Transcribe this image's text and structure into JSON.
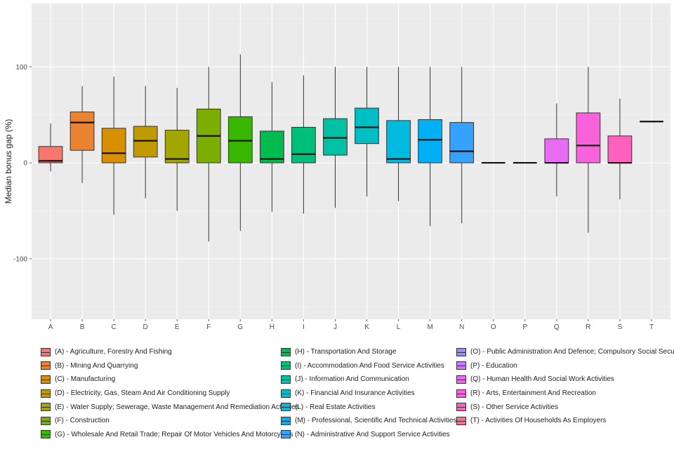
{
  "chart_data": {
    "type": "boxplot",
    "ylabel": "Median bonus gap (%)",
    "xlabel": "",
    "ylim": [
      -163,
      166
    ],
    "yticks": [
      -100,
      0,
      100
    ],
    "grid": true,
    "legend_position": "bottom",
    "categories": [
      "A",
      "B",
      "C",
      "D",
      "E",
      "F",
      "G",
      "H",
      "I",
      "J",
      "K",
      "L",
      "M",
      "N",
      "O",
      "P",
      "Q",
      "R",
      "S",
      "T"
    ],
    "boxes": [
      {
        "min": -9,
        "q1": 0,
        "median": 2,
        "q3": 17,
        "max": 41
      },
      {
        "min": -21,
        "q1": 13,
        "median": 42,
        "q3": 53,
        "max": 80
      },
      {
        "min": -54,
        "q1": 0,
        "median": 10,
        "q3": 36,
        "max": 90
      },
      {
        "min": -37,
        "q1": 6,
        "median": 23,
        "q3": 38,
        "max": 80
      },
      {
        "min": -50,
        "q1": 0,
        "median": 4,
        "q3": 34,
        "max": 78
      },
      {
        "min": -82,
        "q1": 0,
        "median": 28,
        "q3": 56,
        "max": 100
      },
      {
        "min": -71,
        "q1": 0,
        "median": 23,
        "q3": 48,
        "max": 113
      },
      {
        "min": -51,
        "q1": 0,
        "median": 4,
        "q3": 33,
        "max": 84
      },
      {
        "min": -53,
        "q1": 0,
        "median": 9,
        "q3": 37,
        "max": 91
      },
      {
        "min": -47,
        "q1": 8,
        "median": 26,
        "q3": 46,
        "max": 100
      },
      {
        "min": -35,
        "q1": 20,
        "median": 37,
        "q3": 57,
        "max": 100
      },
      {
        "min": -40,
        "q1": 0,
        "median": 4,
        "q3": 44,
        "max": 100
      },
      {
        "min": -66,
        "q1": 0,
        "median": 24,
        "q3": 45,
        "max": 100
      },
      {
        "min": -63,
        "q1": 0,
        "median": 12,
        "q3": 42,
        "max": 100
      },
      {
        "min": 0,
        "q1": 0,
        "median": 0,
        "q3": 0,
        "max": 0
      },
      {
        "min": 0,
        "q1": 0,
        "median": 0,
        "q3": 0,
        "max": 0
      },
      {
        "min": -35,
        "q1": 0,
        "median": 0,
        "q3": 25,
        "max": 62
      },
      {
        "min": -73,
        "q1": 0,
        "median": 18,
        "q3": 52,
        "max": 100
      },
      {
        "min": -38,
        "q1": 0,
        "median": 0,
        "q3": 28,
        "max": 67
      },
      {
        "min": 43,
        "q1": 43,
        "median": 43,
        "q3": 43,
        "max": 43
      }
    ],
    "colors": [
      "#F8766D",
      "#EA8331",
      "#D89000",
      "#C09B00",
      "#A3A500",
      "#7CAE00",
      "#39B600",
      "#00BB4E",
      "#00BF7D",
      "#00C1A3",
      "#00BFC4",
      "#00BAE0",
      "#00B0F6",
      "#35A2FF",
      "#9590FF",
      "#C77CFF",
      "#E76BF3",
      "#FA62DB",
      "#FF62BC",
      "#FF6C91"
    ],
    "legend": [
      "(A) - Agriculture, Forestry And Fishing",
      "(B) - Mining And Quarrying",
      "(C) - Manufacturing",
      "(D) - Electricity, Gas, Steam And Air Conditioning Supply",
      "(E) - Water Supply; Sewerage, Waste Management And Remediation Activities",
      "(F) - Construction",
      "(G) - Wholesale And Retail Trade; Repair Of Motor Vehicles And Motorcycles",
      "(H) - Transportation And Storage",
      "(I) - Accommodation And Food Service Activities",
      "(J) - Information And Communication",
      "(K) - Financial And Insurance Activities",
      "(L) - Real Estate Activities",
      "(M) - Professional, Scientific And Technical Activities",
      "(N) - Administrative And Support Service Activities",
      "(O) - Public Administration And Defence; Compulsory Social Security",
      "(P) - Education",
      "(Q) - Human Health And Social Work Activities",
      "(R) - Arts, Entertainment And Recreation",
      "(S) - Other Service Activities",
      "(T) - Activities Of Households As Employers"
    ]
  }
}
